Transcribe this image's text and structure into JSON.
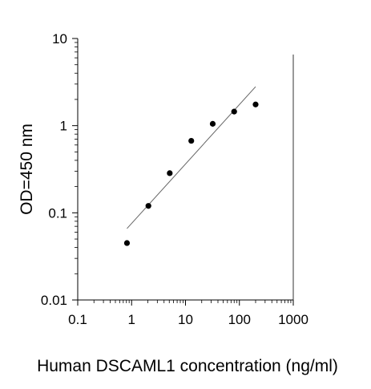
{
  "chart_data": {
    "type": "scatter",
    "title": "",
    "xlabel": "Human DSCAML1 concentration (ng/ml)",
    "ylabel": "OD=450 nm",
    "x_scale": "log",
    "y_scale": "log",
    "xlim": [
      0.1,
      1000
    ],
    "ylim": [
      0.01,
      10
    ],
    "x_ticks": [
      0.1,
      1,
      10,
      100,
      1000
    ],
    "x_tick_labels": [
      "0.1",
      "1",
      "10",
      "100",
      "1000"
    ],
    "y_ticks": [
      0.01,
      0.1,
      1,
      10
    ],
    "y_tick_labels": [
      "0.01",
      "0.1",
      "1",
      "10"
    ],
    "grid": false,
    "legend": "none",
    "series": [
      {
        "x": [
          0.82,
          2.05,
          5.1,
          12.8,
          32,
          80,
          200
        ],
        "y": [
          0.045,
          0.12,
          0.285,
          0.67,
          1.05,
          1.45,
          1.75
        ],
        "marker": "circle",
        "color": "#000000"
      }
    ],
    "fit_line": {
      "x": [
        0.82,
        200
      ],
      "y": [
        0.066,
        2.8
      ],
      "color": "#666666"
    }
  }
}
